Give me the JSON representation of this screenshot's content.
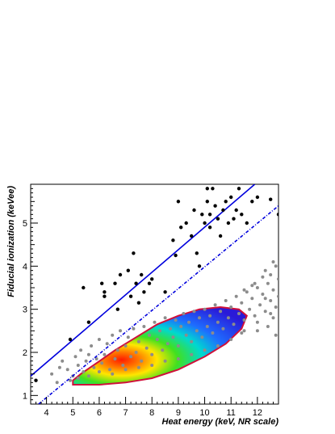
{
  "chart_data": {
    "type": "scatter",
    "title": "",
    "xlabel": "Heat energy (keV, NR scale)",
    "ylabel": "Fiducial ionization (keVee)",
    "xlim": [
      3.4,
      12.8
    ],
    "ylim": [
      0.8,
      5.9
    ],
    "x_ticks": [
      "4",
      "5",
      "6",
      "7",
      "8",
      "9",
      "10",
      "11",
      "12"
    ],
    "y_ticks": [
      "1",
      "2",
      "3",
      "4",
      "5"
    ],
    "grid": false,
    "colors": {
      "line_solid": "#0000dd",
      "line_dotted": "#0000dd",
      "black_points": "#000000",
      "gray_points": "#8c8c8c",
      "contour_edge": "#d0103a"
    },
    "series": [
      {
        "style": "black-points",
        "points": [
          [
            3.6,
            1.35
          ],
          [
            4.9,
            2.3
          ],
          [
            5.4,
            3.5
          ],
          [
            5.6,
            2.7
          ],
          [
            6.1,
            3.6
          ],
          [
            6.2,
            3.3
          ],
          [
            6.2,
            3.4
          ],
          [
            6.6,
            3.6
          ],
          [
            6.7,
            3.0
          ],
          [
            6.8,
            3.8
          ],
          [
            7.1,
            3.9
          ],
          [
            7.2,
            3.3
          ],
          [
            7.3,
            4.3
          ],
          [
            7.4,
            3.6
          ],
          [
            7.5,
            3.15
          ],
          [
            7.6,
            3.8
          ],
          [
            7.7,
            3.4
          ],
          [
            7.9,
            3.6
          ],
          [
            8.0,
            3.7
          ],
          [
            8.5,
            3.4
          ],
          [
            8.8,
            4.6
          ],
          [
            8.9,
            4.25
          ],
          [
            9.0,
            5.5
          ],
          [
            9.1,
            4.9
          ],
          [
            9.3,
            5.0
          ],
          [
            9.5,
            4.7
          ],
          [
            9.6,
            5.3
          ],
          [
            9.7,
            4.3
          ],
          [
            9.8,
            4.0
          ],
          [
            9.9,
            5.2
          ],
          [
            10.0,
            5.0
          ],
          [
            10.1,
            5.8
          ],
          [
            10.1,
            5.5
          ],
          [
            10.2,
            5.2
          ],
          [
            10.2,
            4.9
          ],
          [
            10.3,
            5.8
          ],
          [
            10.4,
            5.4
          ],
          [
            10.5,
            5.1
          ],
          [
            10.6,
            4.7
          ],
          [
            10.7,
            5.3
          ],
          [
            10.8,
            5.5
          ],
          [
            10.9,
            5.0
          ],
          [
            11.0,
            5.6
          ],
          [
            11.1,
            5.1
          ],
          [
            11.2,
            5.3
          ],
          [
            11.3,
            5.8
          ],
          [
            11.4,
            5.2
          ],
          [
            11.6,
            5.0
          ],
          [
            11.8,
            5.5
          ],
          [
            12.0,
            5.6
          ],
          [
            12.5,
            5.55
          ],
          [
            12.8,
            5.2
          ]
        ]
      },
      {
        "style": "gray-points",
        "points": [
          [
            4.2,
            1.5
          ],
          [
            4.5,
            1.65
          ],
          [
            4.6,
            1.8
          ],
          [
            4.8,
            1.6
          ],
          [
            5.0,
            1.45
          ],
          [
            5.1,
            1.9
          ],
          [
            5.2,
            1.7
          ],
          [
            5.3,
            2.05
          ],
          [
            5.4,
            1.55
          ],
          [
            5.5,
            1.8
          ],
          [
            5.6,
            1.95
          ],
          [
            5.7,
            2.15
          ],
          [
            5.8,
            1.65
          ],
          [
            5.9,
            1.85
          ],
          [
            6.0,
            2.3
          ],
          [
            6.1,
            1.75
          ],
          [
            6.2,
            1.95
          ],
          [
            6.3,
            2.2
          ],
          [
            6.4,
            1.6
          ],
          [
            6.5,
            2.4
          ],
          [
            6.6,
            1.85
          ],
          [
            6.7,
            2.05
          ],
          [
            6.8,
            2.5
          ],
          [
            6.9,
            1.7
          ],
          [
            7.0,
            2.15
          ],
          [
            7.1,
            2.35
          ],
          [
            7.2,
            1.9
          ],
          [
            7.3,
            2.55
          ],
          [
            7.4,
            2.0
          ],
          [
            7.5,
            2.25
          ],
          [
            7.6,
            1.8
          ],
          [
            7.7,
            2.6
          ],
          [
            7.8,
            2.1
          ],
          [
            7.9,
            2.4
          ],
          [
            8.0,
            1.95
          ],
          [
            8.1,
            2.7
          ],
          [
            8.2,
            2.3
          ],
          [
            8.3,
            2.5
          ],
          [
            8.4,
            2.05
          ],
          [
            8.5,
            2.8
          ],
          [
            8.6,
            2.2
          ],
          [
            8.7,
            2.55
          ],
          [
            8.8,
            2.35
          ],
          [
            8.9,
            2.75
          ],
          [
            9.0,
            2.15
          ],
          [
            9.1,
            2.6
          ],
          [
            9.2,
            2.9
          ],
          [
            9.3,
            2.4
          ],
          [
            9.4,
            2.7
          ],
          [
            9.5,
            2.25
          ],
          [
            9.6,
            2.95
          ],
          [
            9.7,
            2.5
          ],
          [
            9.8,
            2.8
          ],
          [
            9.9,
            2.35
          ],
          [
            10.0,
            3.0
          ],
          [
            10.1,
            2.6
          ],
          [
            10.2,
            2.85
          ],
          [
            10.3,
            2.45
          ],
          [
            10.4,
            3.1
          ],
          [
            10.5,
            2.7
          ],
          [
            10.6,
            2.95
          ],
          [
            10.7,
            2.55
          ],
          [
            10.8,
            3.2
          ],
          [
            10.9,
            2.8
          ],
          [
            11.0,
            3.05
          ],
          [
            11.1,
            2.65
          ],
          [
            11.2,
            3.3
          ],
          [
            11.3,
            2.9
          ],
          [
            11.4,
            3.15
          ],
          [
            11.5,
            2.75
          ],
          [
            11.6,
            3.4
          ],
          [
            11.7,
            3.0
          ],
          [
            11.8,
            3.25
          ],
          [
            11.9,
            2.85
          ],
          [
            12.0,
            3.5
          ],
          [
            12.1,
            3.1
          ],
          [
            12.2,
            3.35
          ],
          [
            12.3,
            2.95
          ],
          [
            12.4,
            3.6
          ],
          [
            12.5,
            3.2
          ],
          [
            12.6,
            3.45
          ],
          [
            12.7,
            3.05
          ],
          [
            12.8,
            3.7
          ],
          [
            12.3,
            3.9
          ],
          [
            12.6,
            4.1
          ],
          [
            12.5,
            3.8
          ],
          [
            12.7,
            4.0
          ],
          [
            11.9,
            3.6
          ],
          [
            12.2,
            3.75
          ],
          [
            11.5,
            3.45
          ],
          [
            11.8,
            3.55
          ],
          [
            12.4,
            2.6
          ],
          [
            12.6,
            2.8
          ],
          [
            12.0,
            2.5
          ],
          [
            12.7,
            2.4
          ],
          [
            12.5,
            2.9
          ],
          [
            11.4,
            2.45
          ],
          [
            12.8,
            3.3
          ],
          [
            4.4,
            1.3
          ],
          [
            4.9,
            1.35
          ],
          [
            5.2,
            1.4
          ],
          [
            5.6,
            1.45
          ],
          [
            6.0,
            1.55
          ],
          [
            6.5,
            1.5
          ],
          [
            7.0,
            1.6
          ],
          [
            7.5,
            1.65
          ],
          [
            8.0,
            1.7
          ],
          [
            8.5,
            1.8
          ],
          [
            9.0,
            1.85
          ],
          [
            9.5,
            1.95
          ],
          [
            10.0,
            2.05
          ],
          [
            10.5,
            2.15
          ],
          [
            11.0,
            2.3
          ],
          [
            11.5,
            2.5
          ],
          [
            12.0,
            2.7
          ],
          [
            12.3,
            3.25
          ]
        ]
      },
      {
        "style": "density-contour",
        "points": [
          [
            5.0,
            1.25
          ],
          [
            5.3,
            1.25
          ],
          [
            6.0,
            1.25
          ],
          [
            7.0,
            1.3
          ],
          [
            8.0,
            1.4
          ],
          [
            9.0,
            1.6
          ],
          [
            10.0,
            1.9
          ],
          [
            10.8,
            2.2
          ],
          [
            11.4,
            2.55
          ],
          [
            11.6,
            2.85
          ],
          [
            11.3,
            3.0
          ],
          [
            10.6,
            3.05
          ],
          [
            9.8,
            3.0
          ],
          [
            9.0,
            2.85
          ],
          [
            8.2,
            2.65
          ],
          [
            7.4,
            2.35
          ],
          [
            6.6,
            2.05
          ],
          [
            5.9,
            1.75
          ],
          [
            5.3,
            1.5
          ],
          [
            5.0,
            1.35
          ]
        ]
      },
      {
        "style": "solid-line",
        "points": [
          [
            3.4,
            1.45
          ],
          [
            11.9,
            5.9
          ]
        ]
      },
      {
        "style": "dotted-line",
        "points": [
          [
            3.7,
            0.8
          ],
          [
            12.8,
            5.4
          ]
        ]
      }
    ]
  }
}
